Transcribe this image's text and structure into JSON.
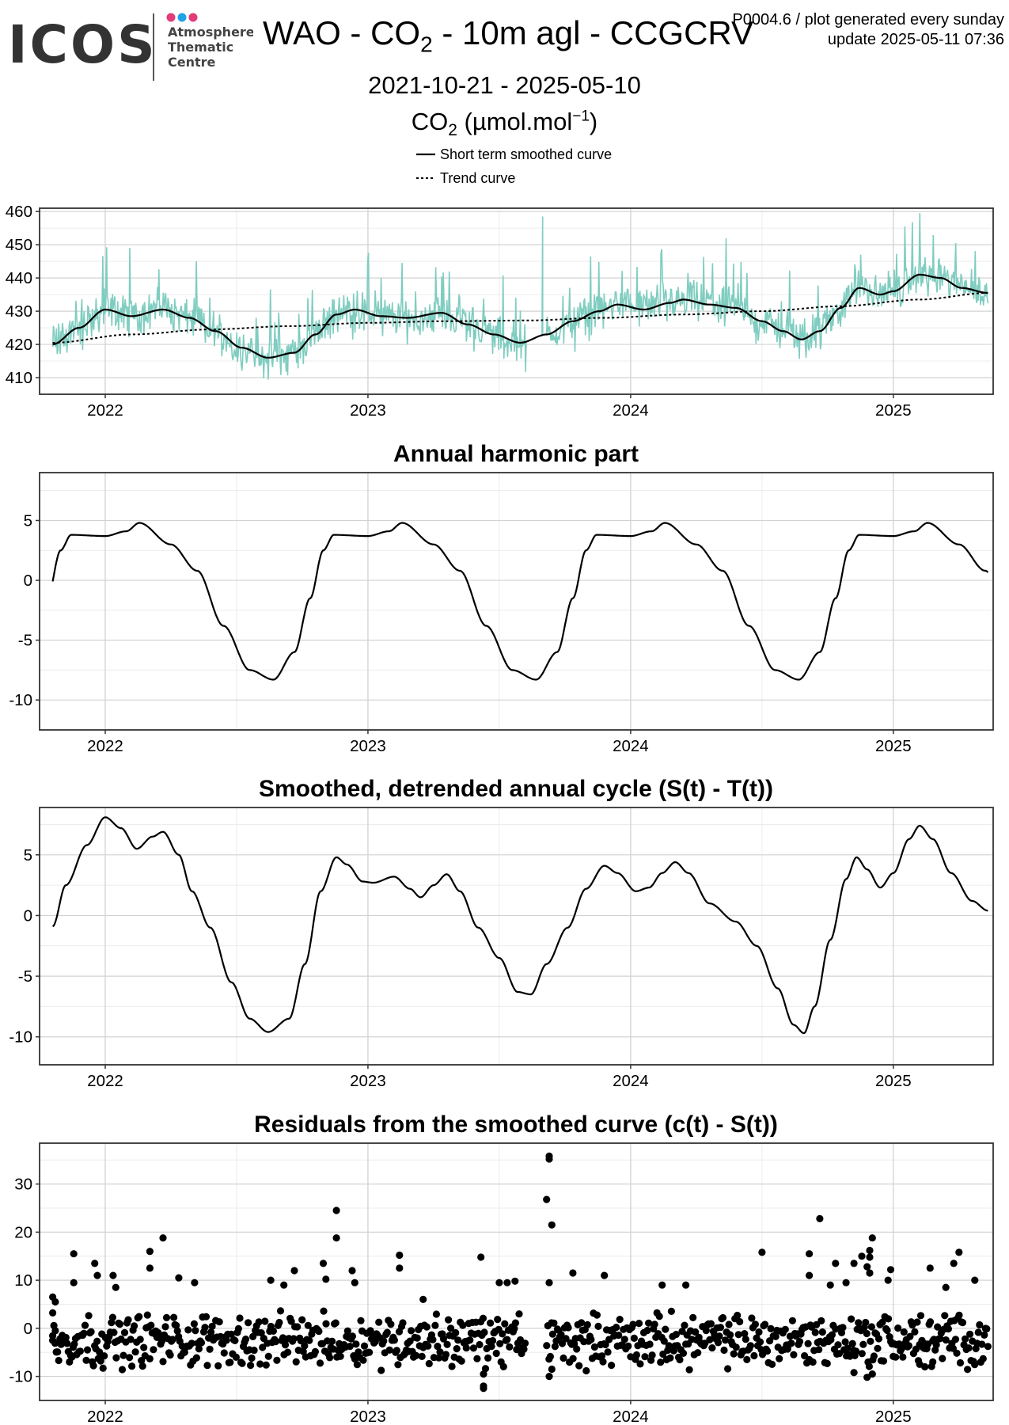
{
  "logo": {
    "wordmark": "ICOS",
    "sublines": [
      "Atmosphere",
      "Thematic",
      "Centre"
    ],
    "dot_colors": [
      "#e23c7a",
      "#1fa3e6",
      "#e23c7a"
    ]
  },
  "header": {
    "title_parts": [
      "WAO - CO",
      "2",
      " - 10m agl - CCGCRV"
    ],
    "meta_line1": "P0004.6 / plot generated every sunday",
    "meta_line2": "update  2025-05-11 07:36",
    "date_range": "2021-10-21 - 2025-05-10",
    "unit_parts": [
      "CO",
      "2",
      " (µmol.mol",
      "−1",
      ")"
    ]
  },
  "legend": {
    "items": [
      {
        "label": "Short term smoothed curve",
        "style": "solid"
      },
      {
        "label": "Trend curve",
        "style": "dotted"
      }
    ]
  },
  "colors": {
    "raw": "#7fcdc0",
    "curve": "#000000",
    "grid_major": "#d2d2d2",
    "grid_minor": "#ececec",
    "frame": "#333333"
  },
  "chart_data": [
    {
      "id": "co2",
      "type": "line",
      "title": "",
      "xlabel": "",
      "ylabel": "",
      "xlim": [
        2021.75,
        2025.38
      ],
      "ylim": [
        405,
        461
      ],
      "yticks": [
        410,
        420,
        430,
        440,
        450,
        460
      ],
      "xticks": [
        2022,
        2023,
        2024,
        2025
      ],
      "grid": true,
      "x_start": 2021.8,
      "x_end": 2025.36,
      "series": [
        {
          "name": "Short term smoothed curve",
          "role": "smooth",
          "points": [
            [
              2021.8,
              420
            ],
            [
              2021.9,
              425
            ],
            [
              2022.0,
              430.5
            ],
            [
              2022.1,
              428.5
            ],
            [
              2022.22,
              430.5
            ],
            [
              2022.32,
              428
            ],
            [
              2022.42,
              424
            ],
            [
              2022.52,
              419
            ],
            [
              2022.62,
              416
            ],
            [
              2022.72,
              417.5
            ],
            [
              2022.8,
              423
            ],
            [
              2022.88,
              429
            ],
            [
              2022.95,
              430.5
            ],
            [
              2023.05,
              428.5
            ],
            [
              2023.15,
              428
            ],
            [
              2023.28,
              429.5
            ],
            [
              2023.38,
              426
            ],
            [
              2023.48,
              423
            ],
            [
              2023.58,
              420.5
            ],
            [
              2023.68,
              423
            ],
            [
              2023.78,
              427
            ],
            [
              2023.88,
              430
            ],
            [
              2023.95,
              432
            ],
            [
              2024.05,
              430.5
            ],
            [
              2024.15,
              432.5
            ],
            [
              2024.2,
              433.5
            ],
            [
              2024.3,
              432
            ],
            [
              2024.4,
              431
            ],
            [
              2024.5,
              427
            ],
            [
              2024.58,
              424
            ],
            [
              2024.65,
              421.5
            ],
            [
              2024.72,
              424
            ],
            [
              2024.8,
              431
            ],
            [
              2024.87,
              437
            ],
            [
              2024.95,
              435
            ],
            [
              2025.0,
              436
            ],
            [
              2025.1,
              441
            ],
            [
              2025.18,
              440
            ],
            [
              2025.26,
              437
            ],
            [
              2025.36,
              435.5
            ]
          ]
        },
        {
          "name": "Trend curve",
          "role": "trend",
          "points": [
            [
              2021.8,
              420.5
            ],
            [
              2022.1,
              423
            ],
            [
              2022.4,
              424.5
            ],
            [
              2022.7,
              425.5
            ],
            [
              2023.0,
              426.5
            ],
            [
              2023.3,
              427
            ],
            [
              2023.6,
              427.2
            ],
            [
              2023.9,
              428
            ],
            [
              2024.2,
              429
            ],
            [
              2024.5,
              430
            ],
            [
              2024.8,
              431.5
            ],
            [
              2025.1,
              433.5
            ],
            [
              2025.36,
              435.5
            ]
          ]
        }
      ]
    },
    {
      "id": "harmonic",
      "type": "line",
      "title": "Annual harmonic part",
      "xlabel": "",
      "ylabel": "",
      "xlim": [
        2021.75,
        2025.38
      ],
      "ylim": [
        -12.5,
        9
      ],
      "yticks": [
        -10,
        -5,
        0,
        5
      ],
      "xticks": [
        2022,
        2023,
        2024,
        2025
      ],
      "grid": true,
      "periodic": true,
      "x_start": 2021.8,
      "x_end": 2025.36,
      "cycle_points": [
        [
          0.0,
          3.7
        ],
        [
          0.08,
          4.1
        ],
        [
          0.13,
          4.8
        ],
        [
          0.25,
          3.0
        ],
        [
          0.35,
          0.8
        ],
        [
          0.45,
          -3.8
        ],
        [
          0.55,
          -7.5
        ],
        [
          0.64,
          -8.3
        ],
        [
          0.72,
          -6.0
        ],
        [
          0.78,
          -1.5
        ],
        [
          0.83,
          2.5
        ],
        [
          0.87,
          3.8
        ],
        [
          1.0,
          3.7
        ]
      ]
    },
    {
      "id": "detrended",
      "type": "line",
      "title": "Smoothed, detrended annual cycle (S(t) - T(t))",
      "xlabel": "",
      "ylabel": "",
      "xlim": [
        2021.75,
        2025.38
      ],
      "ylim": [
        -12.3,
        8.9
      ],
      "yticks": [
        -10,
        -5,
        0,
        5
      ],
      "xticks": [
        2022,
        2023,
        2024,
        2025
      ],
      "grid": true,
      "series": [
        {
          "name": "",
          "points": [
            [
              2021.8,
              -0.9
            ],
            [
              2021.85,
              2.5
            ],
            [
              2021.93,
              5.8
            ],
            [
              2022.0,
              8.1
            ],
            [
              2022.06,
              7.2
            ],
            [
              2022.12,
              5.5
            ],
            [
              2022.18,
              6.5
            ],
            [
              2022.22,
              6.9
            ],
            [
              2022.28,
              5
            ],
            [
              2022.33,
              2
            ],
            [
              2022.4,
              -1
            ],
            [
              2022.48,
              -5.5
            ],
            [
              2022.55,
              -8.5
            ],
            [
              2022.62,
              -9.6
            ],
            [
              2022.7,
              -8.5
            ],
            [
              2022.76,
              -4
            ],
            [
              2022.82,
              2
            ],
            [
              2022.88,
              4.8
            ],
            [
              2022.92,
              4.2
            ],
            [
              2022.98,
              2.8
            ],
            [
              2023.02,
              2.7
            ],
            [
              2023.1,
              3.2
            ],
            [
              2023.16,
              2.2
            ],
            [
              2023.2,
              1.5
            ],
            [
              2023.25,
              2.5
            ],
            [
              2023.3,
              3.4
            ],
            [
              2023.35,
              2
            ],
            [
              2023.42,
              -1
            ],
            [
              2023.5,
              -3.5
            ],
            [
              2023.57,
              -6.3
            ],
            [
              2023.62,
              -6.5
            ],
            [
              2023.68,
              -4
            ],
            [
              2023.76,
              -1
            ],
            [
              2023.83,
              2.2
            ],
            [
              2023.9,
              4.1
            ],
            [
              2023.95,
              3.5
            ],
            [
              2024.02,
              2
            ],
            [
              2024.07,
              2.3
            ],
            [
              2024.12,
              3.5
            ],
            [
              2024.17,
              4.4
            ],
            [
              2024.22,
              3.5
            ],
            [
              2024.3,
              1
            ],
            [
              2024.4,
              -0.5
            ],
            [
              2024.48,
              -2.5
            ],
            [
              2024.56,
              -6
            ],
            [
              2024.62,
              -9
            ],
            [
              2024.66,
              -9.7
            ],
            [
              2024.7,
              -7.5
            ],
            [
              2024.76,
              -2
            ],
            [
              2024.82,
              3
            ],
            [
              2024.86,
              4.8
            ],
            [
              2024.9,
              3.8
            ],
            [
              2024.95,
              2.3
            ],
            [
              2025.0,
              3.5
            ],
            [
              2025.06,
              6.3
            ],
            [
              2025.1,
              7.4
            ],
            [
              2025.15,
              6.3
            ],
            [
              2025.22,
              3.5
            ],
            [
              2025.3,
              1.2
            ],
            [
              2025.36,
              0.4
            ]
          ]
        }
      ]
    },
    {
      "id": "residuals",
      "type": "scatter",
      "title": "Residuals from the smoothed curve (c(t) - S(t))",
      "xlabel": "",
      "ylabel": "",
      "xlim": [
        2021.75,
        2025.38
      ],
      "ylim": [
        -15,
        38.5
      ],
      "yticks": [
        -10,
        0,
        10,
        20,
        30
      ],
      "xticks": [
        2022,
        2023,
        2024,
        2025
      ],
      "grid": true,
      "x_start": 2021.8,
      "x_end": 2025.36,
      "gap": [
        2023.6,
        2023.68
      ],
      "outliers": [
        [
          2021.8,
          6.5
        ],
        [
          2021.81,
          5.5
        ],
        [
          2021.8,
          3.2
        ],
        [
          2021.81,
          -0.5
        ],
        [
          2021.8,
          -2.5
        ],
        [
          2021.88,
          15.5
        ],
        [
          2021.88,
          9.5
        ],
        [
          2021.96,
          13.5
        ],
        [
          2021.97,
          11
        ],
        [
          2022.03,
          11
        ],
        [
          2022.04,
          8.5
        ],
        [
          2022.17,
          16
        ],
        [
          2022.17,
          12.5
        ],
        [
          2022.22,
          18.8
        ],
        [
          2022.28,
          10.5
        ],
        [
          2022.34,
          9.5
        ],
        [
          2022.63,
          10
        ],
        [
          2022.68,
          9
        ],
        [
          2022.72,
          12
        ],
        [
          2022.83,
          13.5
        ],
        [
          2022.84,
          10.2
        ],
        [
          2022.88,
          24.5
        ],
        [
          2022.88,
          18.8
        ],
        [
          2022.94,
          12
        ],
        [
          2022.95,
          9.5
        ],
        [
          2023.12,
          15.2
        ],
        [
          2023.12,
          12.5
        ],
        [
          2023.21,
          6
        ],
        [
          2023.43,
          14.8
        ],
        [
          2023.5,
          9.5
        ],
        [
          2023.53,
          9.5
        ],
        [
          2023.56,
          9.8
        ],
        [
          2023.44,
          -9.5
        ],
        [
          2023.44,
          -12
        ],
        [
          2023.44,
          -12.5
        ],
        [
          2023.69,
          35.8
        ],
        [
          2023.69,
          35.2
        ],
        [
          2023.68,
          26.8
        ],
        [
          2023.7,
          21.5
        ],
        [
          2023.69,
          9.5
        ],
        [
          2023.7,
          -8.5
        ],
        [
          2023.69,
          -10
        ],
        [
          2023.78,
          11.5
        ],
        [
          2023.9,
          11
        ],
        [
          2024.12,
          9
        ],
        [
          2024.21,
          9
        ],
        [
          2024.5,
          15.8
        ],
        [
          2024.68,
          15.5
        ],
        [
          2024.72,
          22.8
        ],
        [
          2024.68,
          11
        ],
        [
          2024.78,
          13.5
        ],
        [
          2024.76,
          9
        ],
        [
          2024.82,
          9.5
        ],
        [
          2024.85,
          13.5
        ],
        [
          2024.88,
          15
        ],
        [
          2024.91,
          14.8
        ],
        [
          2024.9,
          12.8
        ],
        [
          2024.91,
          11.5
        ],
        [
          2024.91,
          16.2
        ],
        [
          2024.92,
          18.8
        ],
        [
          2024.85,
          -9.2
        ],
        [
          2024.9,
          -10.2
        ],
        [
          2024.92,
          -9.5
        ],
        [
          2024.99,
          12.2
        ],
        [
          2024.98,
          10
        ],
        [
          2025.1,
          -7.5
        ],
        [
          2025.12,
          -8
        ],
        [
          2025.15,
          -7
        ],
        [
          2025.14,
          12.5
        ],
        [
          2025.2,
          8.5
        ],
        [
          2025.23,
          13.5
        ],
        [
          2025.25,
          15.8
        ],
        [
          2025.31,
          10
        ]
      ]
    }
  ]
}
